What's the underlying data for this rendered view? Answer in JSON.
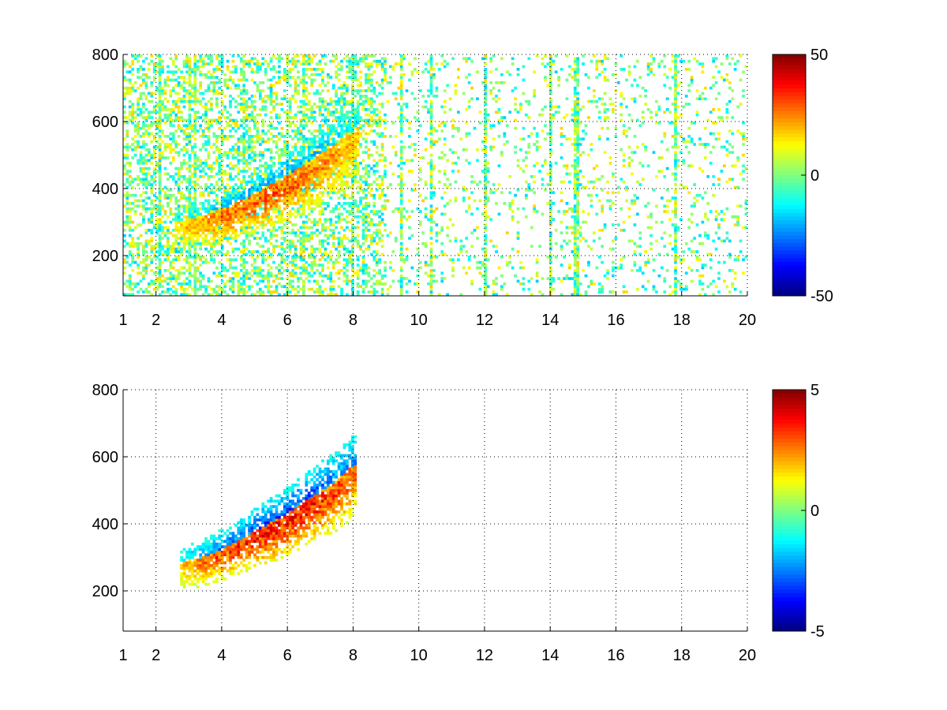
{
  "chart_data": [
    {
      "type": "heatmap",
      "title": "",
      "xlabel": "",
      "ylabel": "",
      "xlim": [
        1,
        20
      ],
      "ylim": [
        80,
        800
      ],
      "x_ticks": [
        1,
        2,
        4,
        6,
        8,
        10,
        12,
        14,
        16,
        18,
        20
      ],
      "y_ticks": [
        200,
        400,
        600,
        800
      ],
      "grid": true,
      "colorbar": {
        "min": -50,
        "max": 50,
        "ticks": [
          50,
          0,
          -50
        ],
        "colormap": "jet"
      },
      "features": {
        "ridge": [
          [
            2.6,
            280,
            18
          ],
          [
            3.4,
            295,
            26
          ],
          [
            4.2,
            320,
            30
          ],
          [
            5.0,
            355,
            32
          ],
          [
            5.8,
            395,
            32
          ],
          [
            6.6,
            440,
            30
          ],
          [
            7.4,
            490,
            26
          ],
          [
            8.2,
            550,
            20
          ]
        ],
        "background_density": 0.35,
        "vertical_stripes": [
          2.1,
          3.0,
          3.2,
          4.7,
          6.5,
          8.0,
          9.5,
          10.4,
          12.0,
          14.0,
          14.8,
          17.8
        ]
      }
    },
    {
      "type": "heatmap",
      "title": "",
      "xlabel": "",
      "ylabel": "",
      "xlim": [
        1,
        20
      ],
      "ylim": [
        80,
        800
      ],
      "x_ticks": [
        1,
        2,
        4,
        6,
        8,
        10,
        12,
        14,
        16,
        18,
        20
      ],
      "y_ticks": [
        200,
        400,
        600,
        800
      ],
      "grid": true,
      "colorbar": {
        "min": -5,
        "max": 5,
        "ticks": [
          5,
          0,
          -5
        ],
        "colormap": "jet"
      },
      "features": {
        "ridge": [
          [
            2.7,
            270,
            2
          ],
          [
            3.5,
            285,
            3
          ],
          [
            4.3,
            320,
            3.5
          ],
          [
            5.1,
            360,
            4
          ],
          [
            5.9,
            400,
            4
          ],
          [
            6.7,
            450,
            4
          ],
          [
            7.5,
            500,
            3.5
          ],
          [
            8.1,
            550,
            3
          ]
        ],
        "background_density": 0.0,
        "vertical_stripes": []
      }
    }
  ]
}
